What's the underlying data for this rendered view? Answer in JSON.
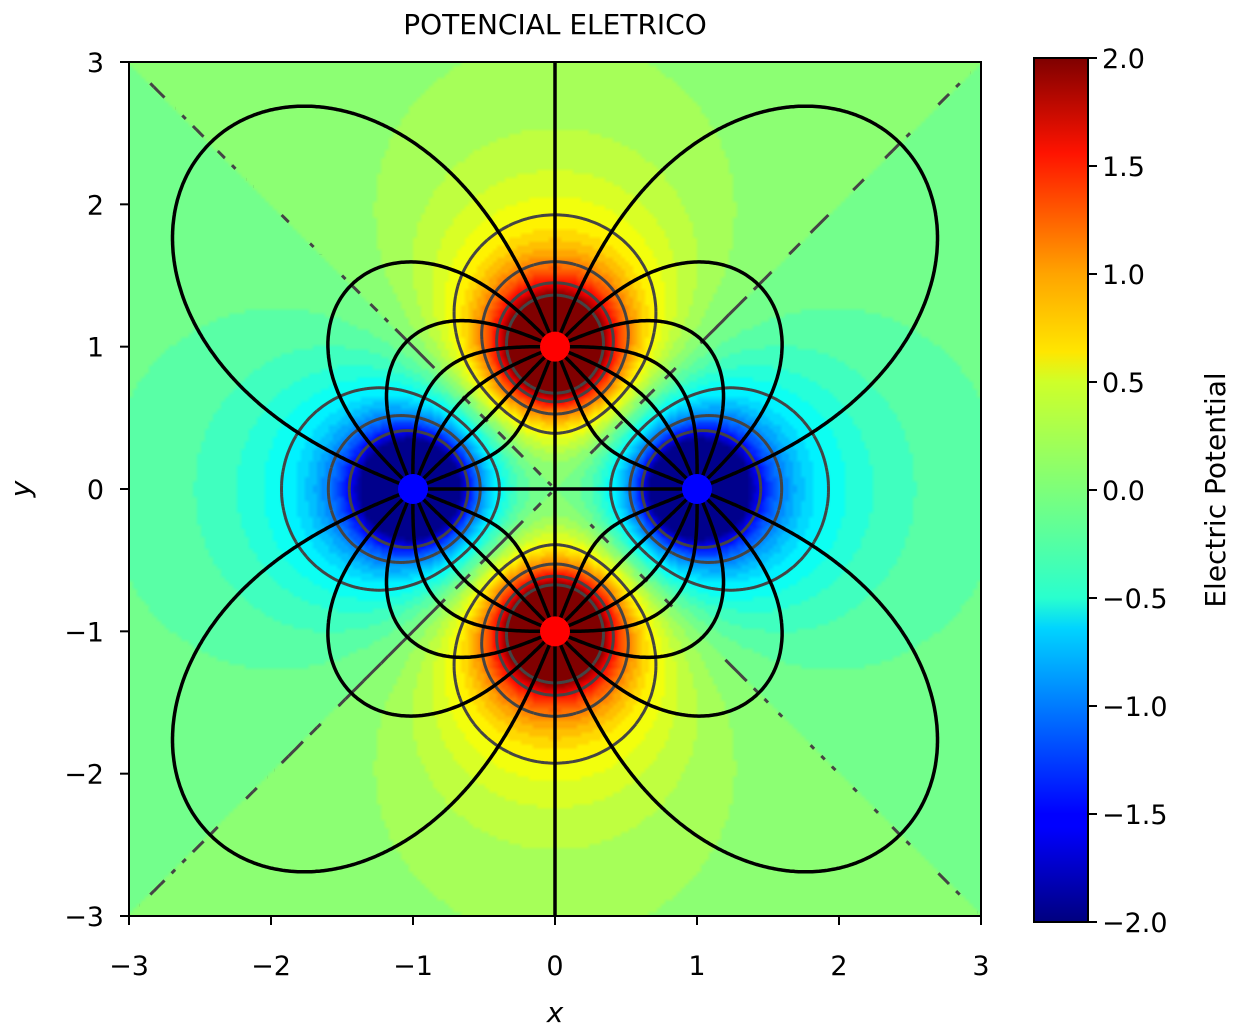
{
  "chart_data": {
    "type": "heatmap",
    "title": "POTENCIAL ELETRICO",
    "xlabel": "x",
    "ylabel": "y",
    "xlim": [
      -3,
      3
    ],
    "ylim": [
      -3,
      3
    ],
    "x_ticks": [
      -3,
      -2,
      -1,
      0,
      1,
      2,
      3
    ],
    "y_ticks": [
      -3,
      -2,
      -1,
      0,
      1,
      2,
      3
    ],
    "x_tick_labels": [
      "−3",
      "−2",
      "−1",
      "0",
      "1",
      "2",
      "3"
    ],
    "y_tick_labels": [
      "−3",
      "−2",
      "−1",
      "0",
      "1",
      "2",
      "3"
    ],
    "colorbar": {
      "label": "Electric Potential",
      "range": [
        -2.0,
        2.0
      ],
      "ticks": [
        2.0,
        1.5,
        1.0,
        0.5,
        0.0,
        -0.5,
        -1.0,
        -1.5,
        -2.0
      ],
      "tick_labels": [
        "2.0",
        "1.5",
        "1.0",
        "0.5",
        "0.0",
        "−0.5",
        "−1.0",
        "−1.5",
        "−2.0"
      ],
      "colormap": "jet"
    },
    "charges": [
      {
        "x": 0,
        "y": 1,
        "sign": "positive",
        "color": "#ff0000"
      },
      {
        "x": 0,
        "y": -1,
        "sign": "positive",
        "color": "#ff0000"
      },
      {
        "x": -1,
        "y": 0,
        "sign": "negative",
        "color": "#0000ff"
      },
      {
        "x": 1,
        "y": 0,
        "sign": "negative",
        "color": "#0000ff"
      }
    ],
    "equipotential_levels": [
      -1.5,
      -1.0,
      -0.5,
      0.0,
      0.5,
      1.0,
      1.5,
      2.0
    ],
    "field_line_color": "#000000",
    "equipotential_color": "#444444",
    "grid": false
  }
}
